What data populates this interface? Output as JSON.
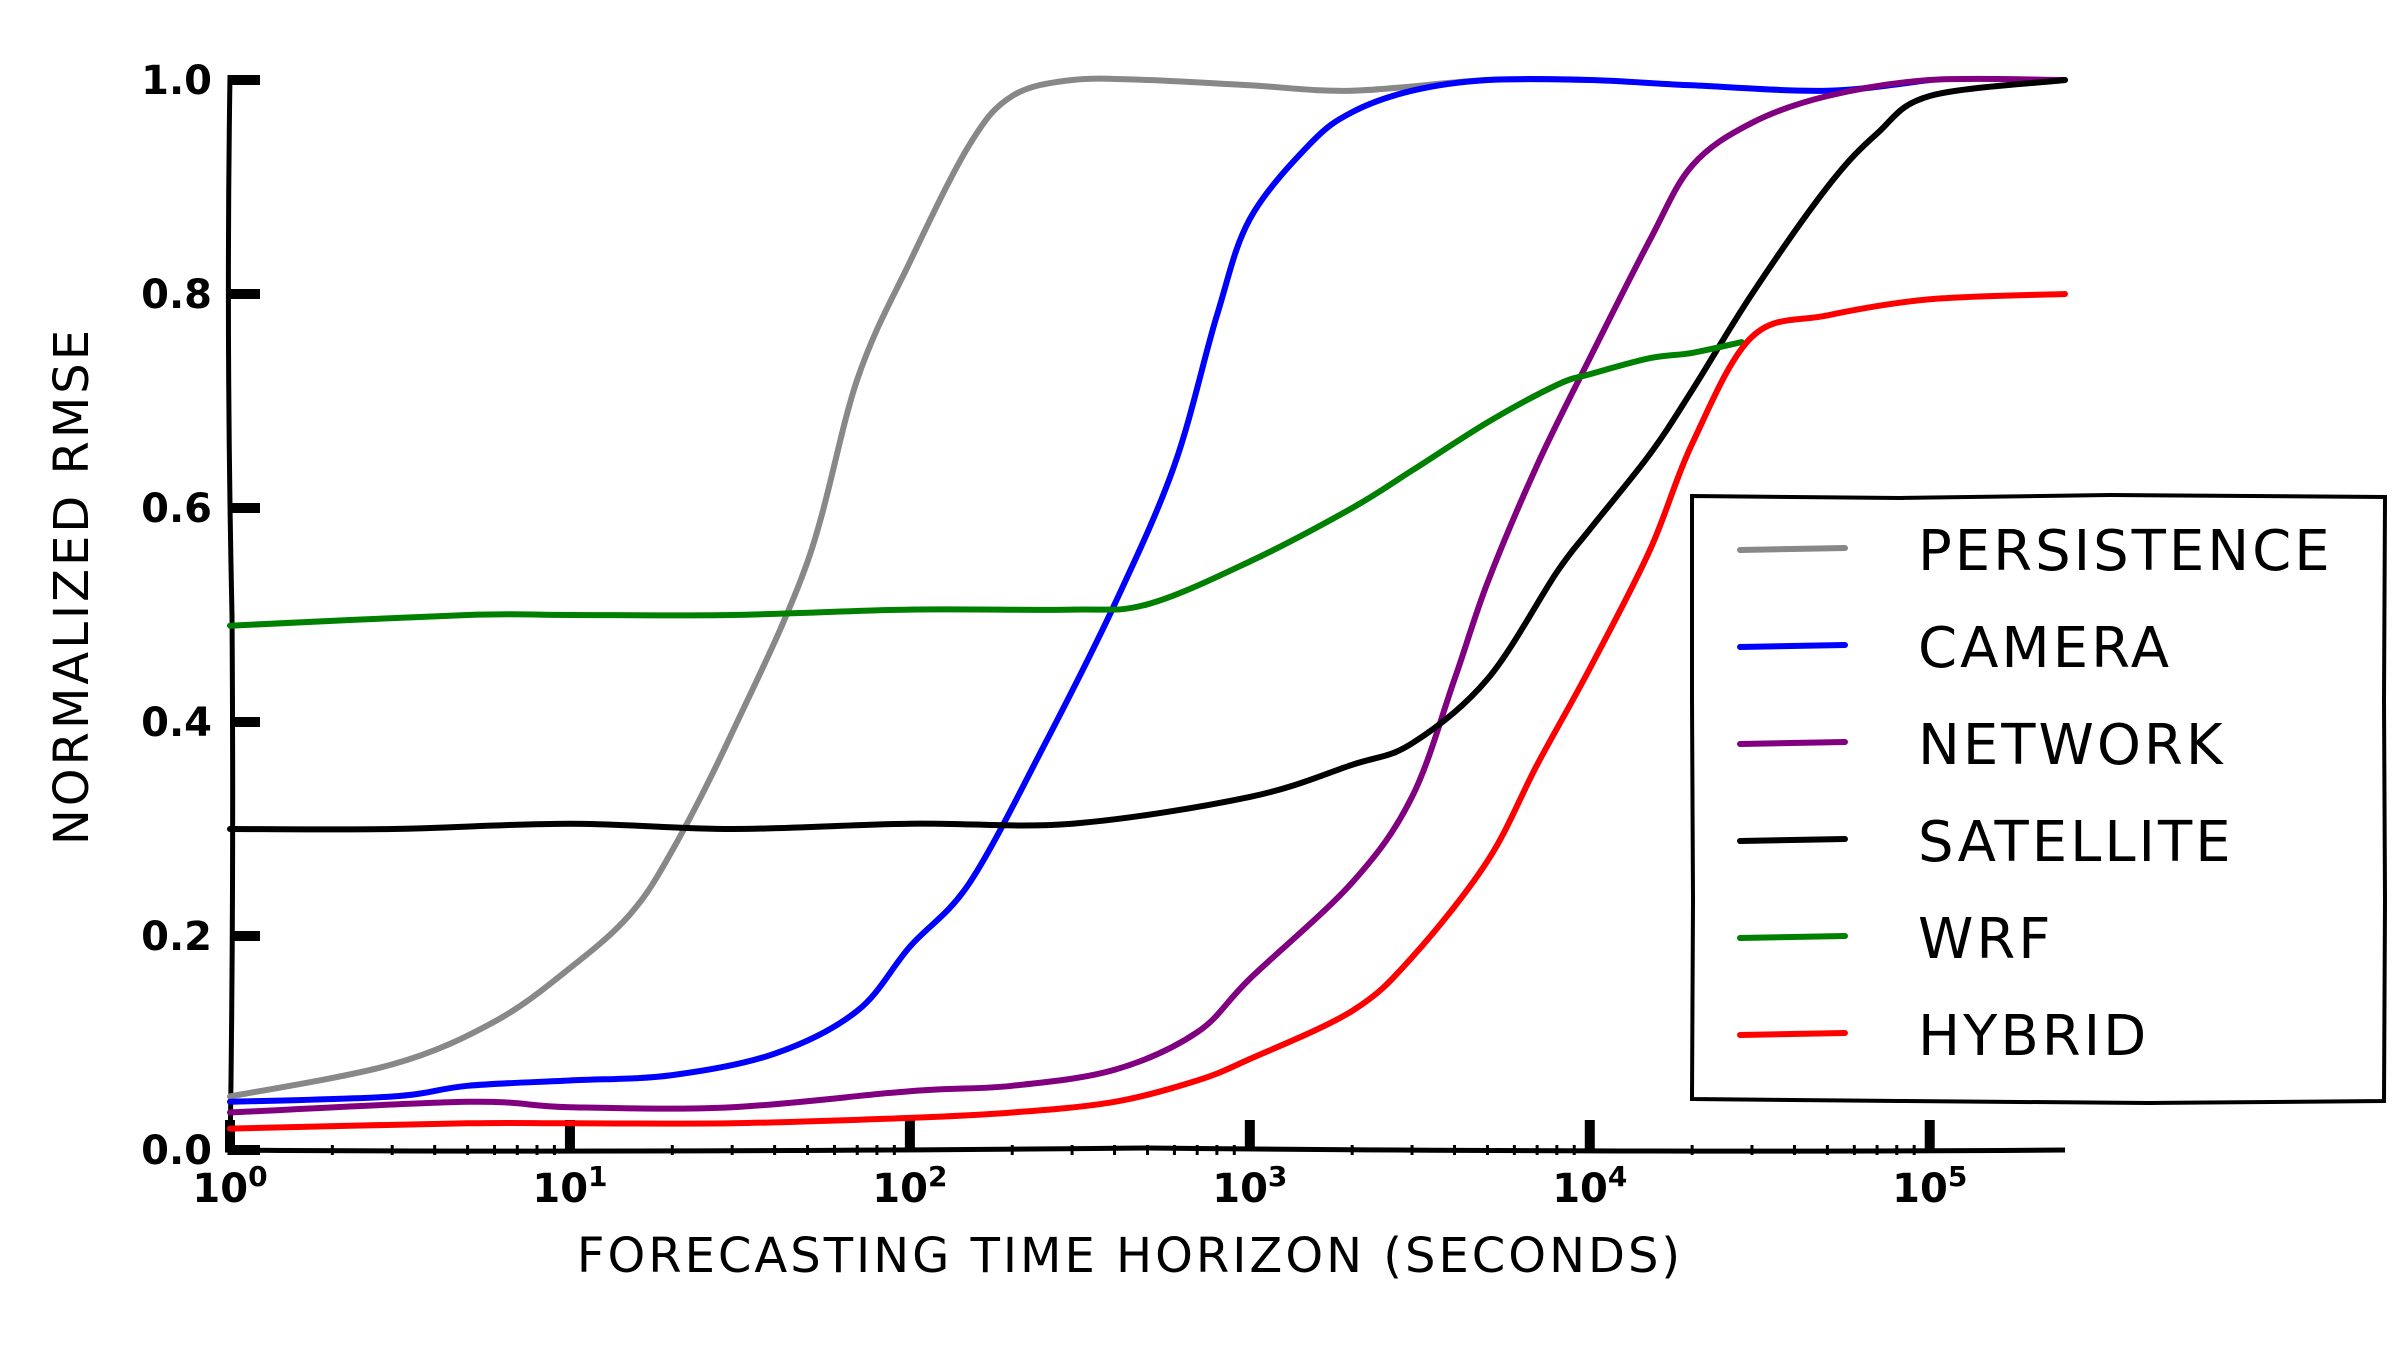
{
  "chart_data": {
    "type": "line",
    "xlabel": "FORECASTING TIME HORIZON (SECONDS)",
    "ylabel": "NORMALIZED RMSE",
    "xscale": "log",
    "xlim": [
      1,
      250000
    ],
    "ylim": [
      0,
      1.0
    ],
    "x_ticks": [
      {
        "value": 1,
        "base": "10",
        "exp": "0"
      },
      {
        "value": 10,
        "base": "10",
        "exp": "1"
      },
      {
        "value": 100,
        "base": "10",
        "exp": "2"
      },
      {
        "value": 1000,
        "base": "10",
        "exp": "3"
      },
      {
        "value": 10000,
        "base": "10",
        "exp": "4"
      },
      {
        "value": 100000,
        "base": "10",
        "exp": "5"
      }
    ],
    "y_ticks": [
      {
        "value": 0.0,
        "label": "0.0"
      },
      {
        "value": 0.2,
        "label": "0.2"
      },
      {
        "value": 0.4,
        "label": "0.4"
      },
      {
        "value": 0.6,
        "label": "0.6"
      },
      {
        "value": 0.8,
        "label": "0.8"
      },
      {
        "value": 1.0,
        "label": "1.0"
      }
    ],
    "grid": false,
    "legend_position": "right",
    "series": [
      {
        "name": "PERSISTENCE",
        "color": "#888888",
        "x": [
          1,
          3,
          6,
          10,
          15,
          20,
          30,
          50,
          70,
          100,
          150,
          200,
          300,
          500,
          1000,
          2000,
          5000,
          10000
        ],
        "y": [
          0.05,
          0.08,
          0.12,
          0.17,
          0.22,
          0.28,
          0.39,
          0.55,
          0.72,
          0.83,
          0.94,
          0.985,
          1.0,
          1.0,
          0.995,
          0.99,
          1.0,
          1.0
        ]
      },
      {
        "name": "CAMERA",
        "color": "#0000ff",
        "x": [
          1,
          3,
          5,
          10,
          20,
          40,
          70,
          100,
          150,
          250,
          400,
          600,
          800,
          1000,
          1500,
          2000,
          3000,
          5000,
          10000,
          20000,
          50000,
          100000
        ],
        "y": [
          0.045,
          0.05,
          0.06,
          0.065,
          0.07,
          0.09,
          0.13,
          0.19,
          0.25,
          0.38,
          0.51,
          0.64,
          0.78,
          0.87,
          0.94,
          0.97,
          0.99,
          1.0,
          1.0,
          0.995,
          0.99,
          1.0
        ]
      },
      {
        "name": "NETWORK",
        "color": "#800080",
        "x": [
          1,
          5,
          10,
          30,
          100,
          200,
          400,
          700,
          1000,
          2000,
          3000,
          4000,
          5000,
          7000,
          10000,
          15000,
          20000,
          30000,
          50000,
          100000,
          250000
        ],
        "y": [
          0.035,
          0.045,
          0.04,
          0.04,
          0.055,
          0.06,
          0.075,
          0.11,
          0.16,
          0.25,
          0.33,
          0.44,
          0.53,
          0.64,
          0.74,
          0.85,
          0.92,
          0.96,
          0.985,
          1.0,
          1.0
        ]
      },
      {
        "name": "SATELLITE",
        "color": "#000000",
        "x": [
          1,
          3,
          10,
          30,
          100,
          300,
          1000,
          2000,
          3000,
          5000,
          8000,
          10000,
          15000,
          20000,
          30000,
          50000,
          70000,
          100000,
          250000
        ],
        "y": [
          0.3,
          0.3,
          0.305,
          0.3,
          0.305,
          0.305,
          0.33,
          0.36,
          0.38,
          0.44,
          0.54,
          0.58,
          0.65,
          0.71,
          0.8,
          0.9,
          0.95,
          0.985,
          1.0
        ]
      },
      {
        "name": "WRF",
        "color": "#008000",
        "x": [
          1,
          5,
          10,
          30,
          100,
          300,
          500,
          1000,
          2000,
          3000,
          5000,
          8000,
          10000,
          15000,
          20000,
          28000
        ],
        "y": [
          0.49,
          0.5,
          0.5,
          0.5,
          0.505,
          0.505,
          0.51,
          0.55,
          0.6,
          0.635,
          0.68,
          0.715,
          0.725,
          0.74,
          0.745,
          0.755
        ]
      },
      {
        "name": "HYBRID",
        "color": "#ff0000",
        "x": [
          1,
          5,
          10,
          30,
          100,
          200,
          400,
          700,
          1000,
          2000,
          3000,
          5000,
          7000,
          10000,
          15000,
          20000,
          30000,
          50000,
          100000,
          250000
        ],
        "y": [
          0.02,
          0.025,
          0.025,
          0.025,
          0.03,
          0.035,
          0.045,
          0.065,
          0.085,
          0.13,
          0.18,
          0.27,
          0.36,
          0.45,
          0.56,
          0.66,
          0.76,
          0.78,
          0.795,
          0.8
        ]
      }
    ]
  }
}
